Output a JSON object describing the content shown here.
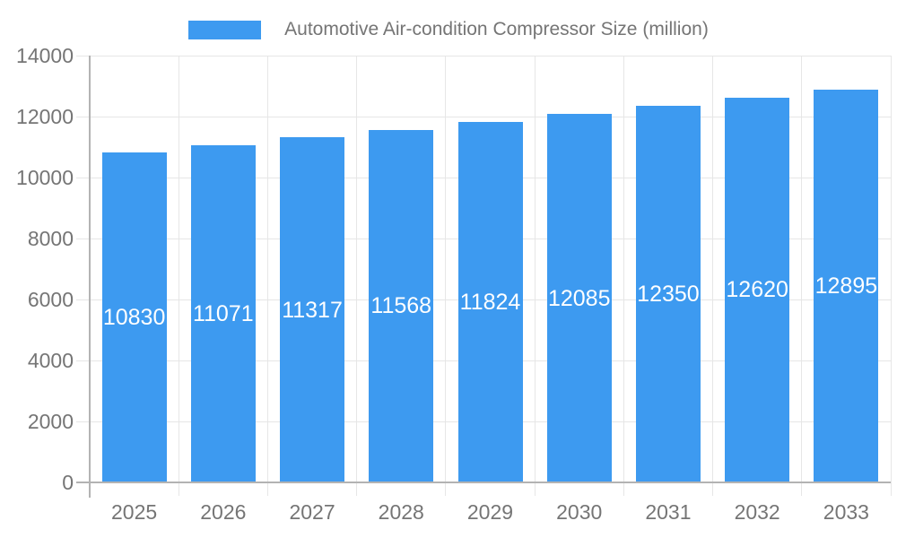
{
  "legend": {
    "label": "Automotive Air-condition Compressor Size (million)"
  },
  "colors": {
    "bar": "#3D9AF0",
    "bar_label": "#FFFFFF",
    "axis_text": "#757575",
    "legend_text": "#757575",
    "grid_line": "#E6E6E6",
    "axis_line": "#B3B3B3",
    "tick_line": "#CCCCCC",
    "background": "#FFFFFF"
  },
  "chart_data": {
    "type": "bar",
    "title": "Automotive Air-condition Compressor Size (million)",
    "legend_position": "top",
    "categories": [
      "2025",
      "2026",
      "2027",
      "2028",
      "2029",
      "2030",
      "2031",
      "2032",
      "2033"
    ],
    "series": [
      {
        "name": "Automotive Air-condition Compressor Size (million)",
        "values": [
          10830,
          11071,
          11317,
          11568,
          11824,
          12085,
          12350,
          12620,
          12895
        ]
      }
    ],
    "bar_value_labels": [
      "10830",
      "11071",
      "11317",
      "11568",
      "11824",
      "12085",
      "12350",
      "12620",
      "12895"
    ],
    "xlabel": "",
    "ylabel": "",
    "ylim": [
      0,
      14000
    ],
    "yticks": [
      0,
      2000,
      4000,
      6000,
      8000,
      10000,
      12000,
      14000
    ],
    "grid": "both",
    "bar_labels_inside": true
  }
}
